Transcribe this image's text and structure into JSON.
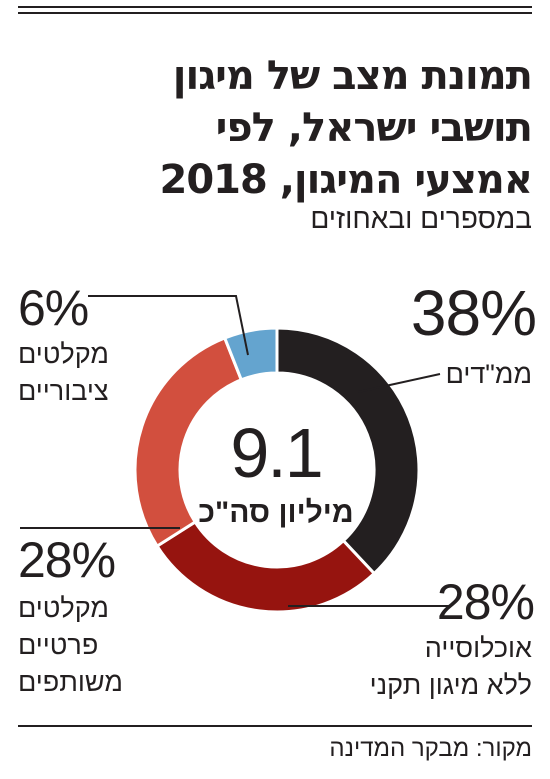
{
  "header": {
    "title_lines": [
      "תמונת מצב של מיגון",
      "תושבי ישראל, לפי",
      "אמצעי המיגון, 2018"
    ],
    "subtitle": "במספרים ובאחוזים"
  },
  "chart_data": {
    "type": "pie",
    "donut": true,
    "center": {
      "value": "9.1",
      "label": "מיליון סה\"כ"
    },
    "slices": [
      {
        "pct_label": "38%",
        "label_lines": [
          "ממ\"דים"
        ],
        "value": 38,
        "color": "#231f20"
      },
      {
        "pct_label": "28%",
        "label_lines": [
          "אוכלוסייה",
          "ללא מיגון תקני"
        ],
        "value": 28,
        "color": "#96140f"
      },
      {
        "pct_label": "28%",
        "label_lines": [
          "מקלטים",
          "פרטיים",
          "משותפים"
        ],
        "value": 28,
        "color": "#d24f3e"
      },
      {
        "pct_label": "6%",
        "label_lines": [
          "מקלטים",
          "ציבוריים"
        ],
        "value": 6,
        "color": "#64a4cf"
      }
    ]
  },
  "footer": {
    "source": "מקור: מבקר המדינה"
  }
}
